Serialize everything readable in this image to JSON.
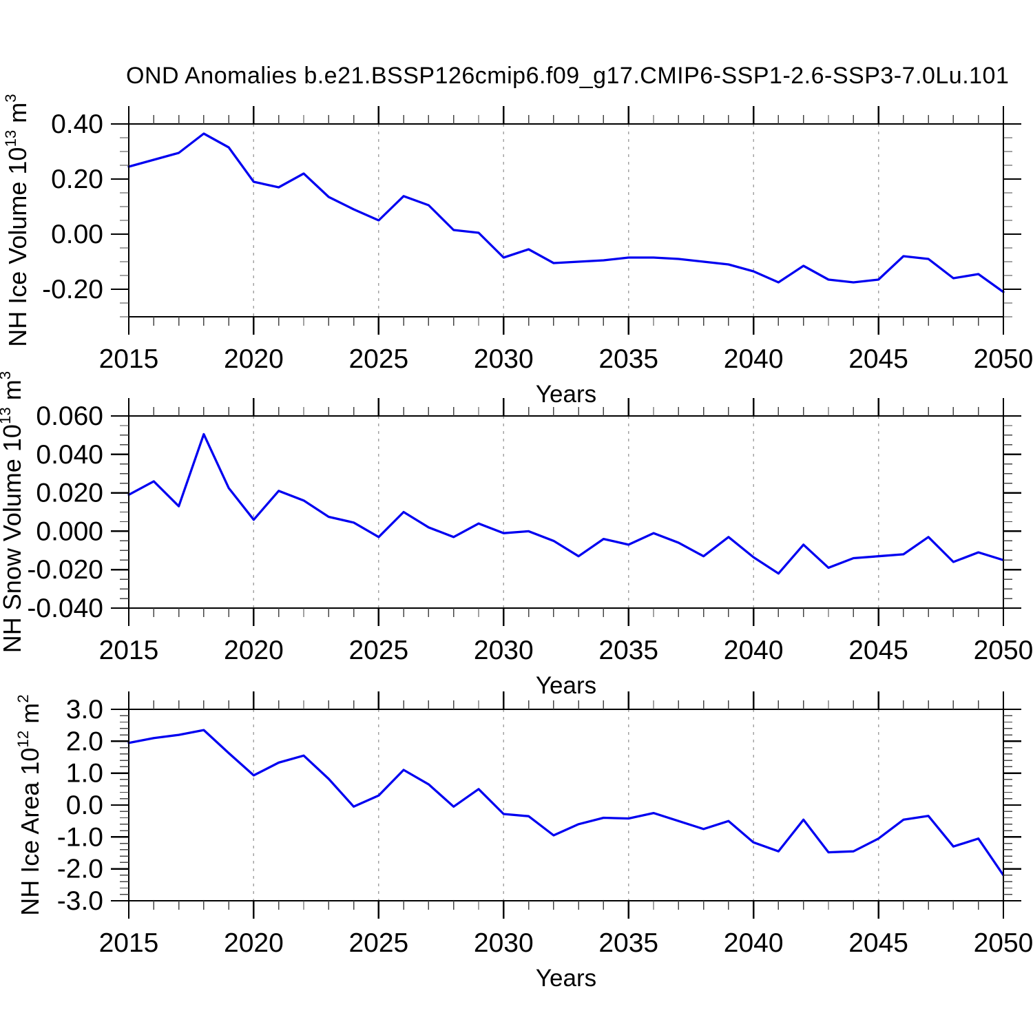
{
  "title": "OND Anomalies b.e21.BSSP126cmip6.f09_g17.CMIP6-SSP1-2.6-SSP3-7.0Lu.101",
  "xlabel": "Years",
  "colors": {
    "line": "#0000f0",
    "grid": "#a3a3a3",
    "axis": "#000000",
    "minor_tick": "#444444"
  },
  "x_range": [
    2015,
    2050
  ],
  "x_tick_years": [
    2015,
    2020,
    2025,
    2030,
    2035,
    2040,
    2045,
    2050
  ],
  "x_tick_labels": [
    "2015",
    "2020",
    "2025",
    "2030",
    "2035",
    "2040",
    "2045",
    "2050"
  ],
  "grid_years": [
    2020,
    2025,
    2030,
    2035,
    2040,
    2045
  ],
  "chart_data": [
    {
      "type": "line",
      "name": "nh-ice-volume",
      "ylabel": "NH Ice Volume 10^13 m^3",
      "xlabel": "Years",
      "ylim": [
        -0.3,
        0.4
      ],
      "ytick_values": [
        0.4,
        0.2,
        0.0,
        -0.2
      ],
      "ytick_labels": [
        "0.40",
        "0.20",
        "0.00",
        "-0.20"
      ],
      "yminor_step": 0.05,
      "x": [
        2015,
        2016,
        2017,
        2018,
        2019,
        2020,
        2021,
        2022,
        2023,
        2024,
        2025,
        2026,
        2027,
        2028,
        2029,
        2030,
        2031,
        2032,
        2033,
        2034,
        2035,
        2036,
        2037,
        2038,
        2039,
        2040,
        2041,
        2042,
        2043,
        2044,
        2045,
        2046,
        2047,
        2048,
        2049,
        2050
      ],
      "values": [
        0.245,
        0.27,
        0.295,
        0.365,
        0.315,
        0.19,
        0.17,
        0.22,
        0.135,
        0.09,
        0.05,
        0.138,
        0.105,
        0.015,
        0.005,
        -0.085,
        -0.055,
        -0.105,
        -0.1,
        -0.095,
        -0.085,
        -0.085,
        -0.09,
        -0.1,
        -0.11,
        -0.135,
        -0.175,
        -0.115,
        -0.165,
        -0.175,
        -0.165,
        -0.08,
        -0.09,
        -0.16,
        -0.145,
        -0.21
      ]
    },
    {
      "type": "line",
      "name": "nh-snow-volume",
      "ylabel": "NH Snow Volume 10^13 m^3",
      "xlabel": "Years",
      "ylim": [
        -0.04,
        0.06
      ],
      "ytick_values": [
        0.06,
        0.04,
        0.02,
        0.0,
        -0.02,
        -0.04
      ],
      "ytick_labels": [
        "0.060",
        "0.040",
        "0.020",
        "0.000",
        "-0.020",
        "-0.040"
      ],
      "yminor_step": 0.005,
      "x": [
        2015,
        2016,
        2017,
        2018,
        2019,
        2020,
        2021,
        2022,
        2023,
        2024,
        2025,
        2026,
        2027,
        2028,
        2029,
        2030,
        2031,
        2032,
        2033,
        2034,
        2035,
        2036,
        2037,
        2038,
        2039,
        2040,
        2041,
        2042,
        2043,
        2044,
        2045,
        2046,
        2047,
        2048,
        2049,
        2050
      ],
      "values": [
        0.019,
        0.026,
        0.013,
        0.0505,
        0.0225,
        0.006,
        0.021,
        0.016,
        0.0075,
        0.0045,
        -0.003,
        0.01,
        0.002,
        -0.003,
        0.004,
        -0.001,
        0.0,
        -0.005,
        -0.013,
        -0.004,
        -0.007,
        -0.001,
        -0.006,
        -0.013,
        -0.003,
        -0.0135,
        -0.022,
        -0.007,
        -0.019,
        -0.014,
        -0.013,
        -0.012,
        -0.003,
        -0.016,
        -0.011,
        -0.015
      ]
    },
    {
      "type": "line",
      "name": "nh-ice-area",
      "ylabel": "NH Ice Area 10^12 m^2",
      "xlabel": "Years",
      "ylim": [
        -3.0,
        3.0
      ],
      "ytick_values": [
        3.0,
        2.0,
        1.0,
        0.0,
        -1.0,
        -2.0,
        -3.0
      ],
      "ytick_labels": [
        "3.0",
        "2.0",
        "1.0",
        "0.0",
        "-1.0",
        "-2.0",
        "-3.0"
      ],
      "yminor_step": 0.2,
      "x": [
        2015,
        2016,
        2017,
        2018,
        2019,
        2020,
        2021,
        2022,
        2023,
        2024,
        2025,
        2026,
        2027,
        2028,
        2029,
        2030,
        2031,
        2032,
        2033,
        2034,
        2035,
        2036,
        2037,
        2038,
        2039,
        2040,
        2041,
        2042,
        2043,
        2044,
        2045,
        2046,
        2047,
        2048,
        2049,
        2050
      ],
      "values": [
        1.95,
        2.1,
        2.2,
        2.35,
        1.63,
        0.93,
        1.33,
        1.55,
        0.82,
        -0.05,
        0.3,
        1.1,
        0.65,
        -0.05,
        0.5,
        -0.28,
        -0.35,
        -0.95,
        -0.6,
        -0.4,
        -0.42,
        -0.25,
        -0.5,
        -0.75,
        -0.5,
        -1.17,
        -1.45,
        -0.46,
        -1.48,
        -1.45,
        -1.05,
        -0.46,
        -0.34,
        -1.3,
        -1.05,
        -2.2
      ]
    }
  ]
}
